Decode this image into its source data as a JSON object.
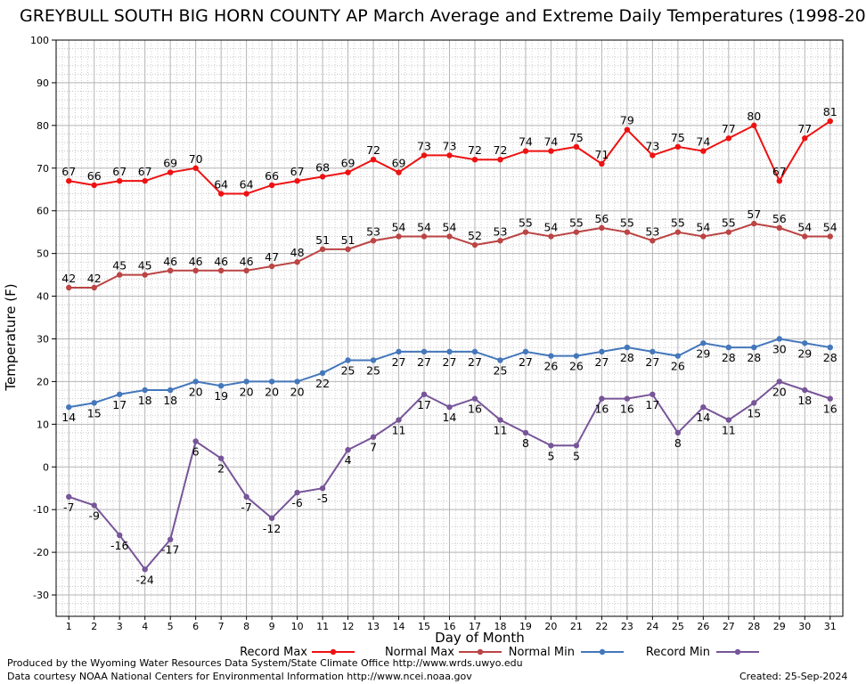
{
  "chart_data": {
    "type": "line",
    "title": "GREYBULL SOUTH BIG HORN COUNTY AP March Average and Extreme Daily Temperatures (1998-20",
    "xlabel": "Day of Month",
    "ylabel": "Temperature (F)",
    "ylim": [
      -35,
      100
    ],
    "yticks": [
      -30,
      -20,
      -10,
      0,
      10,
      20,
      30,
      40,
      50,
      60,
      70,
      80,
      90,
      100
    ],
    "x": [
      1,
      2,
      3,
      4,
      5,
      6,
      7,
      8,
      9,
      10,
      11,
      12,
      13,
      14,
      15,
      16,
      17,
      18,
      19,
      20,
      21,
      22,
      23,
      24,
      25,
      26,
      27,
      28,
      29,
      30,
      31
    ],
    "grid": true,
    "legend_position": "bottom",
    "series": [
      {
        "name": "Record Max",
        "color": "#ee1111",
        "values": [
          67,
          66,
          67,
          67,
          69,
          70,
          64,
          64,
          66,
          67,
          68,
          69,
          72,
          69,
          73,
          73,
          72,
          72,
          74,
          74,
          75,
          71,
          79,
          73,
          75,
          74,
          77,
          80,
          67,
          77,
          81
        ]
      },
      {
        "name": "Normal Max",
        "color": "#bb4444",
        "values": [
          42,
          42,
          45,
          45,
          46,
          46,
          46,
          46,
          47,
          48,
          51,
          51,
          53,
          54,
          54,
          54,
          52,
          53,
          55,
          54,
          55,
          56,
          55,
          53,
          55,
          54,
          55,
          57,
          56,
          54,
          54
        ]
      },
      {
        "name": "Normal Min",
        "color": "#4477bb",
        "values": [
          14,
          15,
          17,
          18,
          18,
          20,
          19,
          20,
          20,
          20,
          22,
          25,
          25,
          27,
          27,
          27,
          27,
          25,
          27,
          26,
          26,
          27,
          28,
          27,
          26,
          29,
          28,
          28,
          30,
          29,
          28
        ]
      },
      {
        "name": "Record Min",
        "color": "#775599",
        "values": [
          -7,
          -9,
          -16,
          -24,
          -17,
          6,
          2,
          -7,
          -12,
          -6,
          -5,
          4,
          7,
          11,
          17,
          14,
          16,
          11,
          8,
          5,
          5,
          16,
          16,
          17,
          8,
          14,
          11,
          15,
          20,
          18,
          16
        ]
      }
    ]
  },
  "footer": {
    "produced_by": "Produced by the Wyoming Water Resources Data System/State Climate Office http://www.wrds.uwyo.edu",
    "courtesy": "Data courtesy NOAA National Centers for Environmental Information http://www.ncei.noaa.gov",
    "created": "Created:  25-Sep-2024"
  }
}
